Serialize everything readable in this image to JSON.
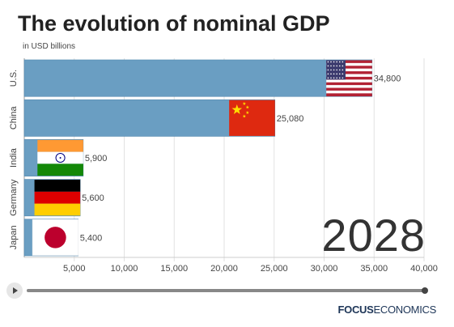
{
  "header": {
    "title": "The evolution of nominal GDP",
    "subtitle": "in USD billions"
  },
  "year_display": "2028",
  "player": {
    "progress": 1.0
  },
  "brand": {
    "bold": "FOCUS",
    "light": "ECONOMICS"
  },
  "colors": {
    "bar": "#6a9ec2",
    "bar_outline": "#4f86ad"
  },
  "chart_data": {
    "type": "bar",
    "orientation": "horizontal",
    "title": "The evolution of nominal GDP",
    "subtitle": "in USD billions",
    "categories": [
      "U.S.",
      "China",
      "India",
      "Germany",
      "Japan"
    ],
    "values": [
      34800,
      25080,
      5900,
      5600,
      5400
    ],
    "value_labels": [
      "34,800",
      "25,080",
      "5,900",
      "5,600",
      "5,400"
    ],
    "flags": [
      "us-flag",
      "china-flag",
      "india-flag",
      "germany-flag",
      "japan-flag"
    ],
    "xlim": [
      0,
      40000
    ],
    "xticks": [
      5000,
      10000,
      15000,
      20000,
      25000,
      30000,
      35000,
      40000
    ],
    "xtick_labels": [
      "5,000",
      "10,000",
      "15,000",
      "20,000",
      "25,000",
      "30,000",
      "35,000",
      "40,000"
    ],
    "grid": true
  }
}
